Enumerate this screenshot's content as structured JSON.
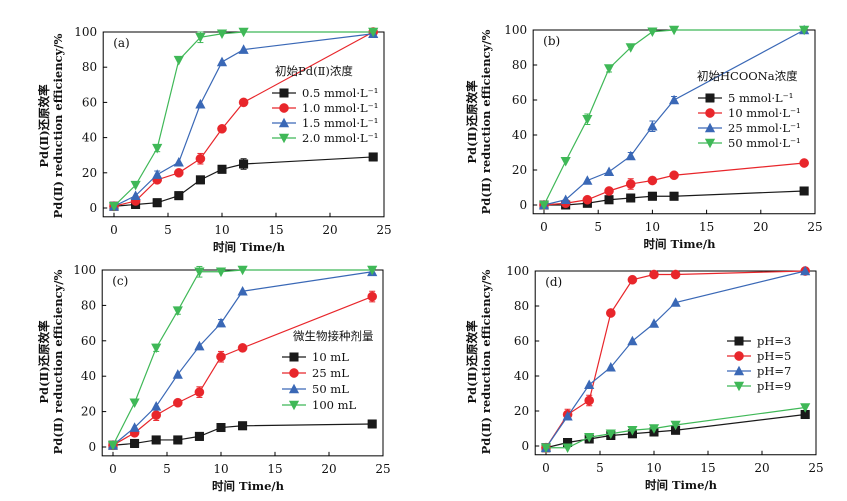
{
  "chart_data": [
    {
      "type": "line",
      "panel_label": "(a)",
      "xlabel": "时间 Time/h",
      "ylabel_cn": "Pd(Ⅱ)还原效率",
      "ylabel_en": "Pd(Ⅱ) reduction efficiency/%",
      "xlim": [
        -1,
        25
      ],
      "ylim": [
        -5,
        100
      ],
      "x_ticks": [
        0,
        5,
        10,
        15,
        20,
        25
      ],
      "y_ticks": [
        0,
        20,
        40,
        60,
        80,
        100
      ],
      "legend_title": "初始Pd(Ⅱ)浓度",
      "legend_position": "center-right",
      "x": [
        0,
        2,
        4,
        6,
        8,
        10,
        12,
        24
      ],
      "series": [
        {
          "name": "0.5 mmol·L⁻¹",
          "color": "#1a1a1a",
          "marker": "square",
          "values": [
            1,
            2,
            3,
            7,
            16,
            22,
            25,
            29
          ],
          "errors": [
            0,
            0,
            0,
            0,
            0,
            2,
            3,
            2
          ]
        },
        {
          "name": "1.0 mmol·L⁻¹",
          "color": "#e8262b",
          "marker": "circle",
          "values": [
            1,
            4,
            16,
            20,
            28,
            45,
            60,
            100
          ],
          "errors": [
            0,
            0,
            0,
            0,
            3,
            0,
            0,
            0
          ]
        },
        {
          "name": "1.5 mmol·L⁻¹",
          "color": "#3a68b6",
          "marker": "triangle-up",
          "values": [
            1,
            7,
            19,
            26,
            59,
            83,
            90,
            99
          ],
          "errors": [
            0,
            0,
            2,
            0,
            0,
            0,
            0,
            0
          ]
        },
        {
          "name": "2.0 mmol·L⁻¹",
          "color": "#3fb857",
          "marker": "triangle-down",
          "values": [
            1,
            13,
            34,
            84,
            97,
            99,
            100,
            100
          ],
          "errors": [
            0,
            0,
            2,
            0,
            3,
            0,
            0,
            0
          ]
        }
      ]
    },
    {
      "type": "line",
      "panel_label": "(b)",
      "xlabel": "时间 Time/h",
      "ylabel_cn": "Pd(Ⅱ)还原效率",
      "ylabel_en": "Pd(Ⅱ) reduction efficiency/%",
      "xlim": [
        -1,
        25
      ],
      "ylim": [
        -5,
        100
      ],
      "x_ticks": [
        0,
        5,
        10,
        15,
        20,
        25
      ],
      "y_ticks": [
        0,
        20,
        40,
        60,
        80,
        100
      ],
      "legend_title": "初始HCOONa浓度",
      "legend_position": "center-right",
      "x": [
        0,
        2,
        4,
        6,
        8,
        10,
        12,
        24
      ],
      "series": [
        {
          "name": "5 mmol·L⁻¹",
          "color": "#1a1a1a",
          "marker": "square",
          "values": [
            0,
            0,
            1,
            3,
            4,
            5,
            5,
            8
          ],
          "errors": [
            0,
            0,
            0,
            0,
            0,
            0,
            0,
            0
          ]
        },
        {
          "name": "10 mmol·L⁻¹",
          "color": "#e8262b",
          "marker": "circle",
          "values": [
            0,
            1,
            3,
            8,
            12,
            14,
            17,
            24
          ],
          "errors": [
            0,
            0,
            0,
            0,
            3,
            0,
            0,
            0
          ]
        },
        {
          "name": "25 mmol·L⁻¹",
          "color": "#3a68b6",
          "marker": "triangle-up",
          "values": [
            0,
            3,
            14,
            19,
            28,
            45,
            60,
            100
          ],
          "errors": [
            0,
            0,
            0,
            0,
            2,
            3,
            2,
            0
          ]
        },
        {
          "name": "50 mmol·L⁻¹",
          "color": "#3fb857",
          "marker": "triangle-down",
          "values": [
            0,
            25,
            49,
            78,
            90,
            99,
            100,
            100
          ],
          "errors": [
            0,
            0,
            3,
            2,
            0,
            0,
            0,
            0
          ]
        }
      ]
    },
    {
      "type": "line",
      "panel_label": "(c)",
      "xlabel": "时间 Time/h",
      "ylabel_cn": "Pd(Ⅱ)还原效率",
      "ylabel_en": "Pd(Ⅱ) reduction efficiency/%",
      "xlim": [
        -1,
        25
      ],
      "ylim": [
        -5,
        100
      ],
      "x_ticks": [
        0,
        5,
        10,
        15,
        20,
        25
      ],
      "y_ticks": [
        0,
        20,
        40,
        60,
        80,
        100
      ],
      "legend_title": "微生物接种剂量",
      "legend_position": "center-right",
      "x": [
        0,
        2,
        4,
        6,
        8,
        10,
        12,
        24
      ],
      "series": [
        {
          "name": "10 mL",
          "color": "#1a1a1a",
          "marker": "square",
          "values": [
            1,
            2,
            4,
            4,
            6,
            11,
            12,
            13
          ],
          "errors": [
            0,
            0,
            0,
            0,
            0,
            0,
            0,
            0
          ]
        },
        {
          "name": "25 mL",
          "color": "#e8262b",
          "marker": "circle",
          "values": [
            1,
            8,
            18,
            25,
            31,
            51,
            56,
            85
          ],
          "errors": [
            0,
            0,
            3,
            0,
            3,
            3,
            0,
            3
          ]
        },
        {
          "name": "50 mL",
          "color": "#3a68b6",
          "marker": "triangle-up",
          "values": [
            1,
            11,
            23,
            41,
            57,
            70,
            88,
            99
          ],
          "errors": [
            0,
            0,
            0,
            0,
            0,
            2,
            0,
            0
          ]
        },
        {
          "name": "100 mL",
          "color": "#3fb857",
          "marker": "triangle-down",
          "values": [
            1,
            25,
            56,
            77,
            99,
            99,
            100,
            100
          ],
          "errors": [
            0,
            0,
            2,
            2,
            3,
            0,
            0,
            0
          ]
        }
      ]
    },
    {
      "type": "line",
      "panel_label": "(d)",
      "xlabel": "时间 Time/h",
      "ylabel_cn": "Pd(Ⅱ)还原效率",
      "ylabel_en": "Pd(Ⅱ) reduction efficiency/%",
      "xlim": [
        -1,
        25
      ],
      "ylim": [
        -5,
        100
      ],
      "x_ticks": [
        0,
        5,
        10,
        15,
        20,
        25
      ],
      "y_ticks": [
        0,
        20,
        40,
        60,
        80,
        100
      ],
      "legend_title": "",
      "legend_position": "center-right",
      "x": [
        0,
        2,
        4,
        6,
        8,
        10,
        12,
        24
      ],
      "series": [
        {
          "name": "pH=3",
          "color": "#1a1a1a",
          "marker": "square",
          "values": [
            -1,
            2,
            4,
            6,
            7,
            8,
            9,
            18
          ],
          "errors": [
            0,
            0,
            0,
            0,
            2,
            0,
            0,
            0
          ]
        },
        {
          "name": "pH=5",
          "color": "#e8262b",
          "marker": "circle",
          "values": [
            -1,
            18,
            26,
            76,
            95,
            98,
            98,
            100
          ],
          "errors": [
            0,
            3,
            3,
            0,
            0,
            0,
            0,
            0
          ]
        },
        {
          "name": "pH=7",
          "color": "#3a68b6",
          "marker": "triangle-up",
          "values": [
            -1,
            17,
            35,
            45,
            60,
            70,
            82,
            100
          ],
          "errors": [
            0,
            0,
            0,
            0,
            0,
            0,
            0,
            0
          ]
        },
        {
          "name": "pH=9",
          "color": "#3fb857",
          "marker": "triangle-down",
          "values": [
            -1,
            -1,
            5,
            7,
            9,
            10,
            12,
            22
          ],
          "errors": [
            0,
            0,
            0,
            0,
            0,
            0,
            0,
            0
          ]
        }
      ]
    }
  ]
}
